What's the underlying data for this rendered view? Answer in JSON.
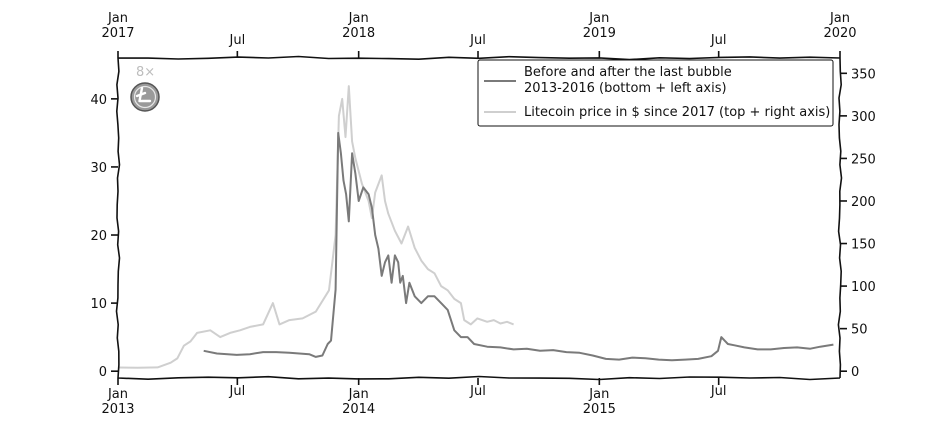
{
  "chart_data": {
    "type": "line",
    "bottom_axis": {
      "ticks": [
        {
          "label": "Jan\n2013",
          "day": 0
        },
        {
          "label": "Jul",
          "day": 181
        },
        {
          "label": "Jan\n2014",
          "day": 365
        },
        {
          "label": "Jul",
          "day": 546
        },
        {
          "label": "Jan\n2015",
          "day": 730
        },
        {
          "label": "Jul",
          "day": 911
        }
      ],
      "xlim": [
        "2013-01-01",
        "2015-12-31"
      ]
    },
    "top_axis": {
      "ticks": [
        {
          "label": "Jan\n2017",
          "day": 0
        },
        {
          "label": "Jul",
          "day": 181
        },
        {
          "label": "Jan\n2018",
          "day": 365
        },
        {
          "label": "Jul",
          "day": 546
        },
        {
          "label": "Jan\n2019",
          "day": 730
        },
        {
          "label": "Jul",
          "day": 911
        },
        {
          "label": "Jan\n2020",
          "day": 1095
        }
      ],
      "xlim": [
        "2017-01-01",
        "2020-01-01"
      ]
    },
    "left_axis": {
      "ticks": [
        0,
        10,
        20,
        30,
        40
      ],
      "ylim": [
        -1,
        46
      ]
    },
    "right_axis": {
      "ticks": [
        0,
        50,
        100,
        150,
        200,
        250,
        300,
        350
      ],
      "ylim": [
        -8,
        368
      ]
    },
    "series": [
      {
        "name": "Before and after the last bubble\n2013-2016 (bottom + left axis)",
        "color": "#7a7a7a",
        "points": [
          [
            130,
            3.0
          ],
          [
            150,
            2.6
          ],
          [
            180,
            2.4
          ],
          [
            200,
            2.5
          ],
          [
            220,
            2.8
          ],
          [
            240,
            2.8
          ],
          [
            260,
            2.7
          ],
          [
            275,
            2.6
          ],
          [
            290,
            2.5
          ],
          [
            300,
            2.1
          ],
          [
            310,
            2.3
          ],
          [
            318,
            4.0
          ],
          [
            323,
            4.5
          ],
          [
            330,
            12
          ],
          [
            334,
            35
          ],
          [
            338,
            32
          ],
          [
            342,
            28
          ],
          [
            346,
            26
          ],
          [
            350,
            22
          ],
          [
            355,
            32
          ],
          [
            360,
            29
          ],
          [
            365,
            25
          ],
          [
            372,
            27
          ],
          [
            380,
            26
          ],
          [
            385,
            24
          ],
          [
            390,
            20
          ],
          [
            395,
            18
          ],
          [
            400,
            14
          ],
          [
            405,
            16
          ],
          [
            410,
            17
          ],
          [
            415,
            13
          ],
          [
            420,
            17
          ],
          [
            425,
            16
          ],
          [
            428,
            13
          ],
          [
            432,
            14
          ],
          [
            437,
            10
          ],
          [
            442,
            13
          ],
          [
            450,
            11
          ],
          [
            460,
            10
          ],
          [
            470,
            11
          ],
          [
            480,
            11
          ],
          [
            490,
            10
          ],
          [
            500,
            9
          ],
          [
            510,
            6
          ],
          [
            520,
            5
          ],
          [
            530,
            5
          ],
          [
            540,
            4
          ],
          [
            560,
            3.6
          ],
          [
            580,
            3.5
          ],
          [
            600,
            3.2
          ],
          [
            620,
            3.3
          ],
          [
            640,
            3.0
          ],
          [
            660,
            3.1
          ],
          [
            680,
            2.8
          ],
          [
            700,
            2.7
          ],
          [
            720,
            2.3
          ],
          [
            740,
            1.8
          ],
          [
            760,
            1.7
          ],
          [
            780,
            2.0
          ],
          [
            800,
            1.9
          ],
          [
            820,
            1.7
          ],
          [
            840,
            1.6
          ],
          [
            860,
            1.7
          ],
          [
            880,
            1.8
          ],
          [
            900,
            2.2
          ],
          [
            910,
            3.0
          ],
          [
            915,
            5.0
          ],
          [
            920,
            4.5
          ],
          [
            925,
            4.0
          ],
          [
            935,
            3.8
          ],
          [
            950,
            3.5
          ],
          [
            970,
            3.2
          ],
          [
            990,
            3.2
          ],
          [
            1010,
            3.4
          ],
          [
            1030,
            3.5
          ],
          [
            1050,
            3.3
          ],
          [
            1065,
            3.6
          ],
          [
            1085,
            3.9
          ]
        ]
      },
      {
        "name": "Litecoin price in $ since 2017 (top + right axis)",
        "color": "#cfcfcf",
        "points": [
          [
            0,
            4.3
          ],
          [
            30,
            4.0
          ],
          [
            60,
            4.5
          ],
          [
            80,
            10
          ],
          [
            90,
            15
          ],
          [
            100,
            30
          ],
          [
            110,
            35
          ],
          [
            120,
            45
          ],
          [
            140,
            48
          ],
          [
            155,
            40
          ],
          [
            170,
            45
          ],
          [
            185,
            48
          ],
          [
            200,
            52
          ],
          [
            220,
            55
          ],
          [
            235,
            80
          ],
          [
            245,
            55
          ],
          [
            260,
            60
          ],
          [
            280,
            62
          ],
          [
            300,
            70
          ],
          [
            320,
            95
          ],
          [
            330,
            160
          ],
          [
            335,
            300
          ],
          [
            340,
            320
          ],
          [
            345,
            275
          ],
          [
            350,
            335
          ],
          [
            355,
            270
          ],
          [
            360,
            250
          ],
          [
            370,
            220
          ],
          [
            380,
            200
          ],
          [
            385,
            180
          ],
          [
            390,
            210
          ],
          [
            400,
            230
          ],
          [
            405,
            200
          ],
          [
            410,
            185
          ],
          [
            420,
            165
          ],
          [
            430,
            150
          ],
          [
            440,
            170
          ],
          [
            450,
            145
          ],
          [
            460,
            130
          ],
          [
            470,
            120
          ],
          [
            480,
            115
          ],
          [
            490,
            100
          ],
          [
            500,
            95
          ],
          [
            510,
            85
          ],
          [
            520,
            80
          ],
          [
            525,
            60
          ],
          [
            535,
            55
          ],
          [
            545,
            62
          ],
          [
            560,
            58
          ],
          [
            570,
            60
          ],
          [
            580,
            56
          ],
          [
            590,
            58
          ],
          [
            600,
            55
          ]
        ]
      }
    ],
    "legend": {
      "position": "top-right"
    },
    "annotation": {
      "text": "8×",
      "icon": "litecoin-logo-icon"
    },
    "grid": false
  }
}
